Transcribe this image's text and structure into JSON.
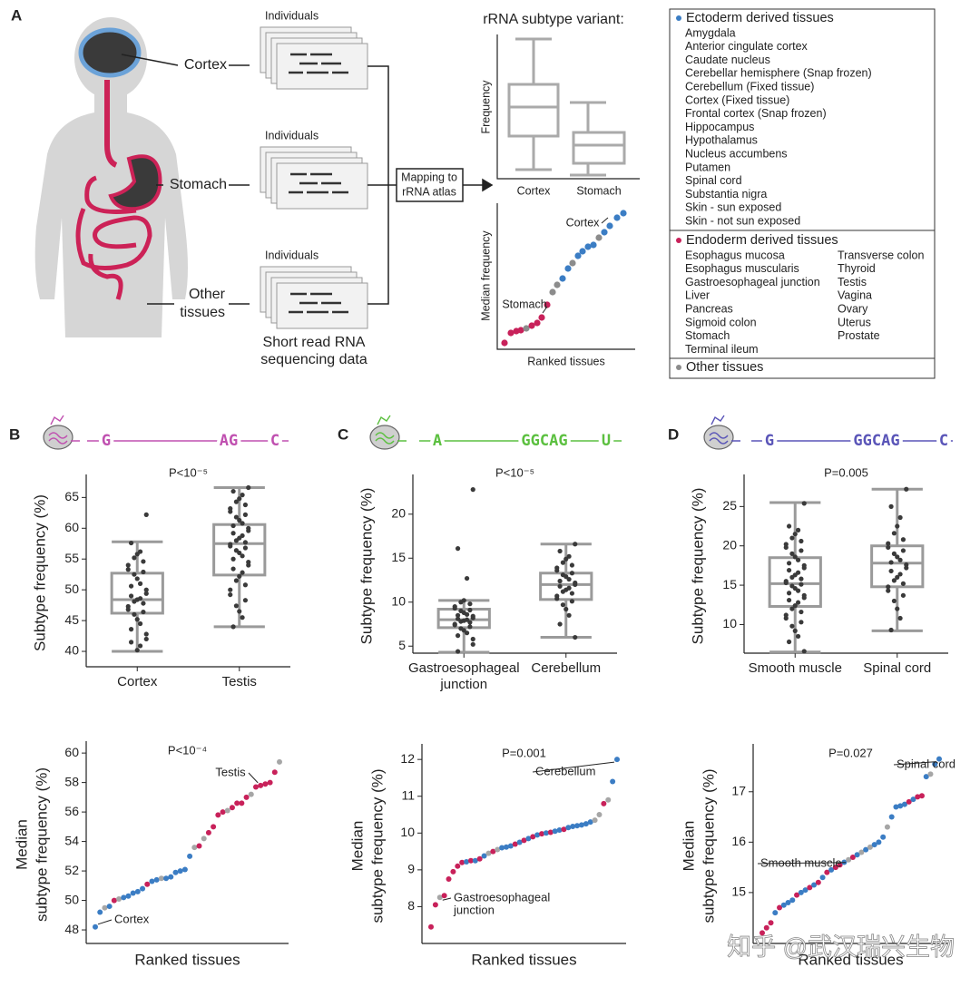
{
  "panel_labels": [
    "A",
    "B",
    "C",
    "D"
  ],
  "panel_a": {
    "cortex_label": "Cortex",
    "stomach_label": "Stomach",
    "other_label": [
      "Other",
      "tissues"
    ],
    "individuals": [
      "Individuals",
      "Individuals",
      "Individuals"
    ],
    "sequencing_label": [
      "Short read RNA",
      "sequencing data"
    ],
    "mapping_label": [
      "Mapping to",
      "rRNA atlas"
    ],
    "schematic_title": "rRNA subtype variant:",
    "schematic_box": {
      "ylabel": "Frequency",
      "categories": [
        "Cortex",
        "Stomach"
      ]
    },
    "schematic_rank": {
      "ylabel": "Median frequency",
      "xlabel": "Ranked tissues",
      "annotations": [
        "Cortex",
        "Stomach"
      ]
    },
    "legend": [
      {
        "name": "Ectoderm derived tissues",
        "color": "#3b7dc4",
        "items": [
          "Amygdala",
          "Anterior cingulate cortex",
          "Caudate nucleus",
          "Cerebellar hemisphere (Snap frozen)",
          "Cerebellum (Fixed tissue)",
          "Cortex (Fixed tissue)",
          "Frontal cortex (Snap frozen)",
          "Hippocampus",
          "Hypothalamus",
          "Nucleus accumbens",
          "Putamen",
          "Spinal cord",
          "Substantia nigra",
          "Skin - sun exposed",
          "Skin - not sun exposed"
        ]
      },
      {
        "name": "Endoderm derived tissues",
        "color": "#c8215a",
        "items": [
          "Esophagus mucosa",
          "Esophagus muscularis",
          "Gastroesophageal junction",
          "Liver",
          "Pancreas",
          "Sigmoid colon",
          "Stomach",
          "Terminal ileum",
          "Transverse colon",
          "Thyroid",
          "Testis",
          "Vagina",
          "Ovary",
          "Uterus",
          "Prostate"
        ]
      },
      {
        "name": "Other tissues",
        "color": "#8c8c8c",
        "items": []
      }
    ]
  },
  "chart_data": [
    {
      "type": "box",
      "title": "P<10⁻⁵",
      "ylabel": "Subtype frequency (%)",
      "sequence": {
        "tokens": [
          "G",
          "AG",
          "C"
        ],
        "color": "#c050b0"
      },
      "categories": [
        "Cortex",
        "Testis"
      ],
      "whisker_low": [
        40,
        44
      ],
      "q1": [
        46.2,
        52.4
      ],
      "median": [
        48.4,
        57.5
      ],
      "q3": [
        52.7,
        60.6
      ],
      "whisker_high": [
        57.8,
        66.6
      ],
      "points": [
        [
          62.2,
          57.6,
          56.2,
          55.8,
          55.2,
          54.6,
          54.0,
          53.3,
          52.9,
          52.5,
          51.8,
          51.0,
          50.6,
          50.0,
          49.4,
          49.0,
          48.6,
          48.4,
          48.1,
          47.8,
          47.3,
          46.8,
          46.4,
          46.0,
          45.2,
          44.5,
          43.6,
          42.8,
          42.0,
          41.5,
          40.9,
          40.2
        ],
        [
          66.6,
          66.0,
          65.4,
          64.8,
          64.3,
          63.8,
          63.2,
          62.7,
          62.2,
          61.8,
          61.3,
          60.8,
          60.4,
          60.0,
          59.6,
          59.2,
          58.8,
          58.4,
          58.0,
          57.7,
          57.4,
          57.1,
          56.8,
          56.4,
          56.0,
          55.5,
          55.0,
          54.5,
          54.0,
          53.4,
          52.8,
          52.2,
          51.5,
          50.8,
          50.0,
          49.2,
          48.3,
          47.4,
          46.5,
          45.5,
          44.0
        ]
      ],
      "box_color": "#9a9a9a",
      "point_color": "#3a3a3a",
      "ylim": [
        37.5,
        68
      ],
      "yticks": [
        40,
        45,
        50,
        55,
        60,
        65
      ]
    },
    {
      "type": "box",
      "title": "P<10⁻⁵",
      "ylabel": "Subtype frequency (%)",
      "sequence": {
        "tokens": [
          "A",
          "GGCAG",
          "U"
        ],
        "color": "#5cc040"
      },
      "categories": [
        "Gastroesophageal junction",
        "Cerebellum"
      ],
      "whisker_low": [
        4.3,
        6.0
      ],
      "q1": [
        7.1,
        10.3
      ],
      "median": [
        8.0,
        12.0
      ],
      "q3": [
        9.2,
        13.3
      ],
      "whisker_high": [
        10.2,
        16.6
      ],
      "points": [
        [
          22.8,
          16.1,
          12.7,
          10.2,
          10.0,
          9.8,
          9.5,
          9.3,
          9.1,
          9.0,
          8.8,
          8.6,
          8.5,
          8.4,
          8.2,
          8.1,
          8.0,
          7.9,
          7.8,
          7.7,
          7.5,
          7.4,
          7.2,
          7.0,
          6.8,
          6.5,
          6.2,
          5.8,
          5.2,
          4.4
        ],
        [
          16.6,
          15.8,
          15.2,
          14.9,
          14.5,
          14.2,
          13.9,
          13.6,
          13.3,
          13.1,
          12.9,
          12.6,
          12.4,
          12.2,
          12.0,
          11.8,
          11.6,
          11.4,
          11.2,
          11.0,
          10.7,
          10.4,
          10.1,
          9.7,
          9.2,
          8.5,
          7.5,
          6.0
        ]
      ],
      "box_color": "#9a9a9a",
      "point_color": "#3a3a3a",
      "ylim": [
        4.2,
        24
      ],
      "yticks": [
        5,
        10,
        15,
        20
      ]
    },
    {
      "type": "box",
      "title": "P=0.005",
      "ylabel": "Subtype frequency (%)",
      "sequence": {
        "tokens": [
          "G",
          "GGCAG",
          "C"
        ],
        "color": "#5a55b8"
      },
      "categories": [
        "Smooth muscle",
        "Spinal cord"
      ],
      "whisker_low": [
        6.5,
        9.2
      ],
      "q1": [
        12.3,
        14.8
      ],
      "median": [
        15.2,
        17.8
      ],
      "q3": [
        18.5,
        20.0
      ],
      "whisker_high": [
        25.5,
        27.2
      ],
      "points": [
        [
          25.4,
          22.5,
          22.0,
          21.5,
          21.0,
          20.6,
          20.2,
          19.8,
          19.4,
          19.0,
          18.6,
          18.2,
          17.8,
          17.5,
          17.2,
          16.9,
          16.6,
          16.3,
          16.0,
          15.8,
          15.5,
          15.3,
          15.1,
          14.9,
          14.6,
          14.3,
          14.0,
          13.7,
          13.4,
          13.1,
          12.8,
          12.4,
          12.0,
          11.6,
          11.2,
          10.8,
          10.3,
          9.8,
          9.2,
          8.5,
          7.8,
          6.6
        ],
        [
          27.2,
          25.0,
          23.6,
          22.5,
          21.6,
          20.8,
          20.3,
          19.8,
          19.4,
          19.0,
          18.6,
          18.2,
          17.9,
          17.6,
          17.2,
          16.8,
          16.4,
          16.0,
          15.6,
          15.2,
          14.8,
          14.3,
          13.7,
          13.0,
          12.0,
          10.8,
          9.3
        ]
      ],
      "box_color": "#9a9a9a",
      "point_color": "#3a3a3a",
      "ylim": [
        6.36,
        28.5
      ],
      "yticks": [
        10,
        15,
        20,
        25
      ]
    },
    {
      "type": "ranked",
      "title": "P<10⁻⁴",
      "ylabel": [
        "Median",
        "subtype frequency (%)"
      ],
      "xlabel": "Ranked tissues",
      "annotations": [
        [
          "Testis"
        ],
        [
          "Cortex"
        ]
      ],
      "values": [
        48.2,
        49.2,
        49.5,
        49.6,
        50.0,
        50.1,
        50.2,
        50.3,
        50.5,
        50.6,
        50.8,
        51.1,
        51.3,
        51.4,
        51.5,
        51.5,
        51.6,
        51.9,
        52.0,
        52.1,
        53.0,
        53.6,
        53.7,
        54.2,
        54.6,
        55.0,
        55.8,
        56.0,
        56.1,
        56.3,
        56.6,
        56.6,
        57.0,
        57.2,
        57.7,
        57.8,
        57.9,
        58.0,
        58.7,
        59.4
      ],
      "colors": [
        "#3b7dc4",
        "#3b7dc4",
        "#a6a6a6",
        "#3b7dc4",
        "#c8215a",
        "#a6a6a6",
        "#3b7dc4",
        "#3b7dc4",
        "#3b7dc4",
        "#3b7dc4",
        "#3b7dc4",
        "#c8215a",
        "#3b7dc4",
        "#3b7dc4",
        "#a6a6a6",
        "#3b7dc4",
        "#3b7dc4",
        "#3b7dc4",
        "#3b7dc4",
        "#3b7dc4",
        "#3b7dc4",
        "#a6a6a6",
        "#c8215a",
        "#a6a6a6",
        "#c8215a",
        "#c8215a",
        "#c8215a",
        "#c8215a",
        "#a6a6a6",
        "#c8215a",
        "#c8215a",
        "#c8215a",
        "#c8215a",
        "#a6a6a6",
        "#c8215a",
        "#c8215a",
        "#c8215a",
        "#c8215a",
        "#c8215a",
        "#a6a6a6"
      ],
      "ylim": [
        47.08,
        60.5
      ],
      "yticks": [
        48,
        50,
        52,
        54,
        56,
        58,
        60
      ]
    },
    {
      "type": "ranked",
      "title": "P=0.001",
      "ylabel": [
        "Median",
        "subtype frequency (%)"
      ],
      "xlabel": "Ranked tissues",
      "annotations": [
        [
          "Cerebellum"
        ],
        [
          "Gastroesophageal",
          "junction"
        ]
      ],
      "values": [
        7.45,
        8.05,
        8.25,
        8.3,
        8.75,
        8.95,
        9.1,
        9.2,
        9.22,
        9.25,
        9.25,
        9.3,
        9.38,
        9.45,
        9.5,
        9.55,
        9.6,
        9.62,
        9.65,
        9.7,
        9.75,
        9.8,
        9.85,
        9.9,
        9.95,
        9.98,
        10.0,
        10.02,
        10.05,
        10.08,
        10.1,
        10.15,
        10.18,
        10.2,
        10.22,
        10.25,
        10.3,
        10.35,
        10.5,
        10.8,
        10.9,
        11.4,
        12.0
      ],
      "colors": [
        "#c8215a",
        "#c8215a",
        "#a6a6a6",
        "#c8215a",
        "#c8215a",
        "#c8215a",
        "#c8215a",
        "#c8215a",
        "#3b7dc4",
        "#c8215a",
        "#3b7dc4",
        "#c8215a",
        "#3b7dc4",
        "#a6a6a6",
        "#c8215a",
        "#a6a6a6",
        "#3b7dc4",
        "#3b7dc4",
        "#3b7dc4",
        "#c8215a",
        "#3b7dc4",
        "#c8215a",
        "#3b7dc4",
        "#c8215a",
        "#3b7dc4",
        "#c8215a",
        "#3b7dc4",
        "#c8215a",
        "#3b7dc4",
        "#3b7dc4",
        "#c8215a",
        "#3b7dc4",
        "#3b7dc4",
        "#3b7dc4",
        "#3b7dc4",
        "#3b7dc4",
        "#3b7dc4",
        "#a6a6a6",
        "#a6a6a6",
        "#c8215a",
        "#a6a6a6",
        "#3b7dc4",
        "#3b7dc4"
      ],
      "ylim": [
        7,
        12.3
      ],
      "yticks": [
        8,
        9,
        10,
        11,
        12
      ]
    },
    {
      "type": "ranked",
      "title": "P=0.027",
      "ylabel": [
        "Median",
        "subtype frequency (%)"
      ],
      "xlabel": "Ranked tissues",
      "annotations": [
        [
          "Spinal cord"
        ],
        [
          "Smooth muscle"
        ]
      ],
      "values": [
        14.2,
        14.3,
        14.4,
        14.6,
        14.7,
        14.75,
        14.8,
        14.85,
        14.95,
        15.0,
        15.05,
        15.1,
        15.15,
        15.2,
        15.3,
        15.4,
        15.45,
        15.5,
        15.55,
        15.6,
        15.65,
        15.7,
        15.75,
        15.8,
        15.85,
        15.9,
        15.95,
        16.0,
        16.1,
        16.3,
        16.5,
        16.7,
        16.72,
        16.75,
        16.8,
        16.85,
        16.9,
        16.92,
        17.3,
        17.35,
        17.55,
        17.65
      ],
      "colors": [
        "#c8215a",
        "#c8215a",
        "#c8215a",
        "#3b7dc4",
        "#c8215a",
        "#3b7dc4",
        "#3b7dc4",
        "#3b7dc4",
        "#c8215a",
        "#3b7dc4",
        "#3b7dc4",
        "#c8215a",
        "#3b7dc4",
        "#c8215a",
        "#3b7dc4",
        "#c8215a",
        "#3b7dc4",
        "#c8215a",
        "#c8215a",
        "#3b7dc4",
        "#a6a6a6",
        "#c8215a",
        "#3b7dc4",
        "#a6a6a6",
        "#3b7dc4",
        "#a6a6a6",
        "#3b7dc4",
        "#3b7dc4",
        "#3b7dc4",
        "#a6a6a6",
        "#3b7dc4",
        "#3b7dc4",
        "#3b7dc4",
        "#3b7dc4",
        "#c8215a",
        "#3b7dc4",
        "#c8215a",
        "#c8215a",
        "#3b7dc4",
        "#a6a6a6",
        "#3b7dc4",
        "#3b7dc4"
      ],
      "ylim": [
        13.99,
        17.86
      ],
      "yticks": [
        15,
        16,
        17
      ]
    }
  ],
  "watermark": "知乎 @武汉瑞兴生物"
}
